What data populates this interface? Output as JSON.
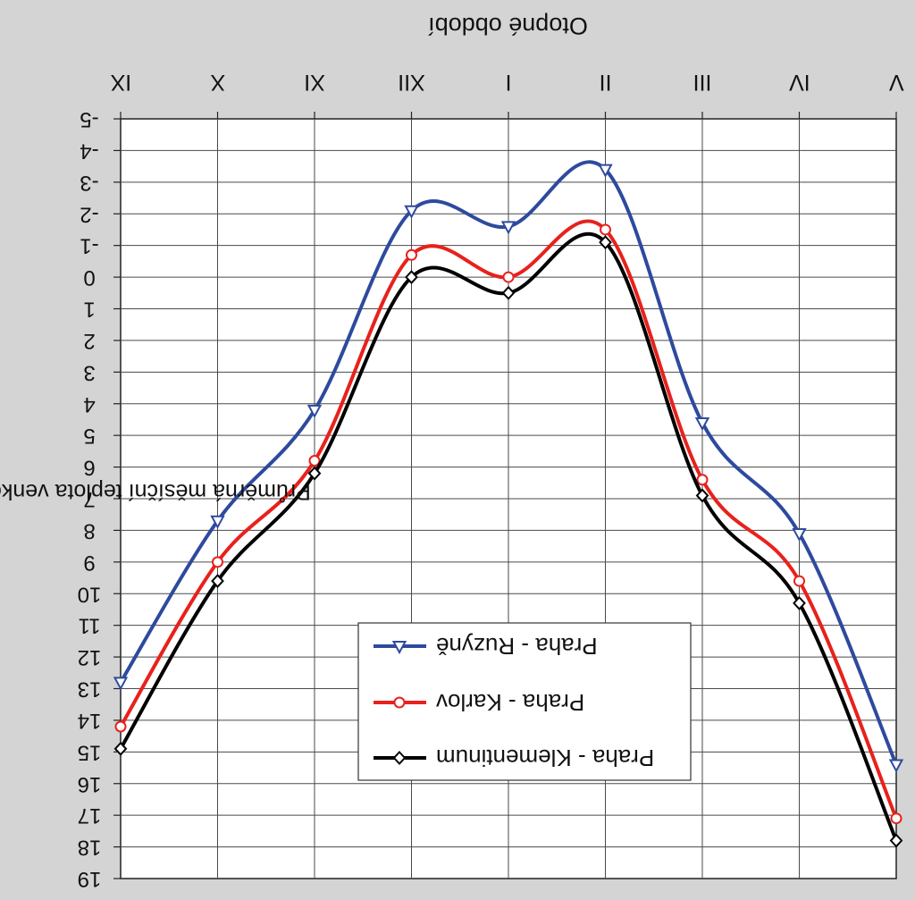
{
  "chart_data": {
    "type": "line",
    "title": "Otopné období",
    "ylabel": "Průměrná měsíční teplota venkovního vzduchu t_e [°C]",
    "categories": [
      "V",
      "IV",
      "III",
      "II",
      "I",
      "XII",
      "XI",
      "X",
      "IX"
    ],
    "ylim": [
      -5,
      19
    ],
    "y_ticks": [
      "-5",
      "-4",
      "-3",
      "-2",
      "-1",
      "0",
      "1",
      "2",
      "3",
      "4",
      "5",
      "6",
      "7",
      "8",
      "9",
      "10",
      "11",
      "12",
      "13",
      "14",
      "15",
      "16",
      "17",
      "18",
      "19"
    ],
    "y_direction": "down",
    "image_rotated_180": true,
    "grid": true,
    "legend_position": "bottom-center",
    "series": [
      {
        "name": "Praha - Ruzyně",
        "color": "#2e4a9e",
        "marker": "triangle",
        "values": [
          15.4,
          8.1,
          4.6,
          -3.4,
          -1.6,
          -2.1,
          4.2,
          7.7,
          12.8
        ]
      },
      {
        "name": "Praha - Karlov",
        "color": "#e8211c",
        "marker": "circle",
        "values": [
          17.1,
          9.6,
          6.4,
          -1.5,
          0.0,
          -0.7,
          5.8,
          9.0,
          14.2
        ]
      },
      {
        "name": "Praha - Klementinum",
        "color": "#000000",
        "marker": "diamond",
        "values": [
          17.8,
          10.3,
          6.9,
          -1.1,
          0.5,
          0.0,
          6.2,
          9.6,
          14.9
        ]
      }
    ]
  }
}
